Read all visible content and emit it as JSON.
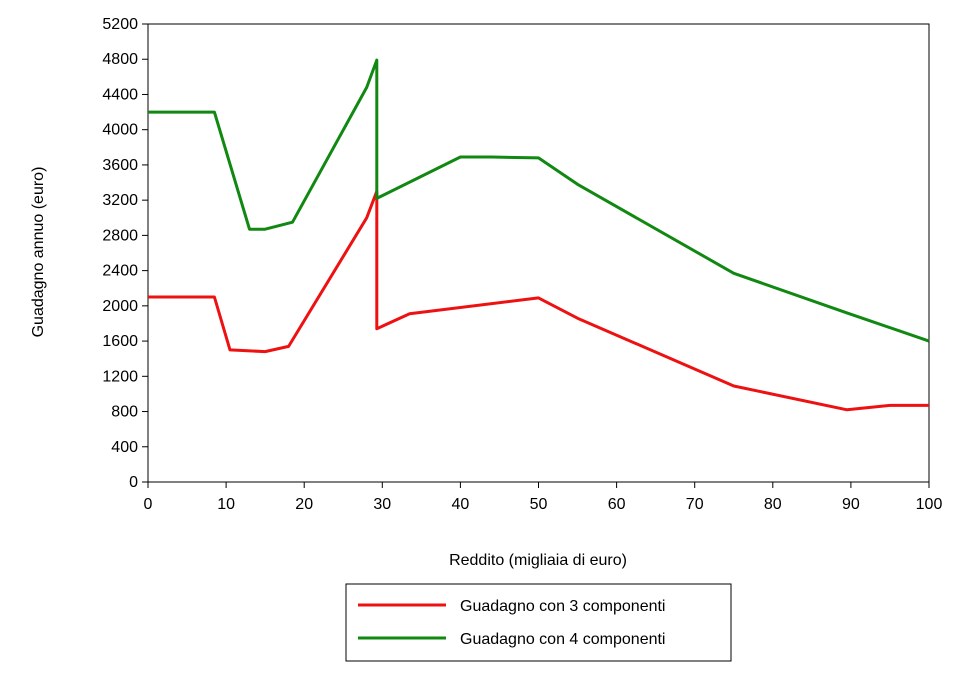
{
  "chart_data": {
    "type": "line",
    "title": "",
    "xlabel": "Reddito (migliaia di euro)",
    "ylabel": "Guadagno annuo (euro)",
    "xlim": [
      0,
      100
    ],
    "ylim": [
      0,
      5200
    ],
    "xticks": [
      0,
      10,
      20,
      30,
      40,
      50,
      60,
      70,
      80,
      90,
      100
    ],
    "yticks": [
      0,
      400,
      800,
      1200,
      1600,
      2000,
      2400,
      2800,
      3200,
      3600,
      4000,
      4400,
      4800,
      5200
    ],
    "grid": false,
    "legend_position": "bottom",
    "series": [
      {
        "name": "Guadagno con 3 componenti",
        "color": "#ee1111",
        "points": [
          [
            0,
            2100
          ],
          [
            8.5,
            2100
          ],
          [
            10.5,
            1500
          ],
          [
            15,
            1480
          ],
          [
            18,
            1540
          ],
          [
            28,
            3000
          ],
          [
            29.3,
            3300
          ],
          [
            29.3,
            1740
          ],
          [
            33.5,
            1910
          ],
          [
            50,
            2090
          ],
          [
            55,
            1860
          ],
          [
            75,
            1090
          ],
          [
            89.5,
            820
          ],
          [
            95,
            870
          ],
          [
            100,
            870
          ]
        ]
      },
      {
        "name": "Guadagno con 4 componenti",
        "color": "#118811",
        "points": [
          [
            0,
            4200
          ],
          [
            8.5,
            4200
          ],
          [
            13,
            2870
          ],
          [
            15,
            2870
          ],
          [
            18.5,
            2950
          ],
          [
            28,
            4480
          ],
          [
            29.3,
            4790
          ],
          [
            29.3,
            3220
          ],
          [
            40,
            3690
          ],
          [
            44,
            3690
          ],
          [
            50,
            3680
          ],
          [
            55,
            3380
          ],
          [
            75,
            2370
          ],
          [
            89.5,
            1920
          ],
          [
            100,
            1600
          ]
        ]
      }
    ]
  }
}
